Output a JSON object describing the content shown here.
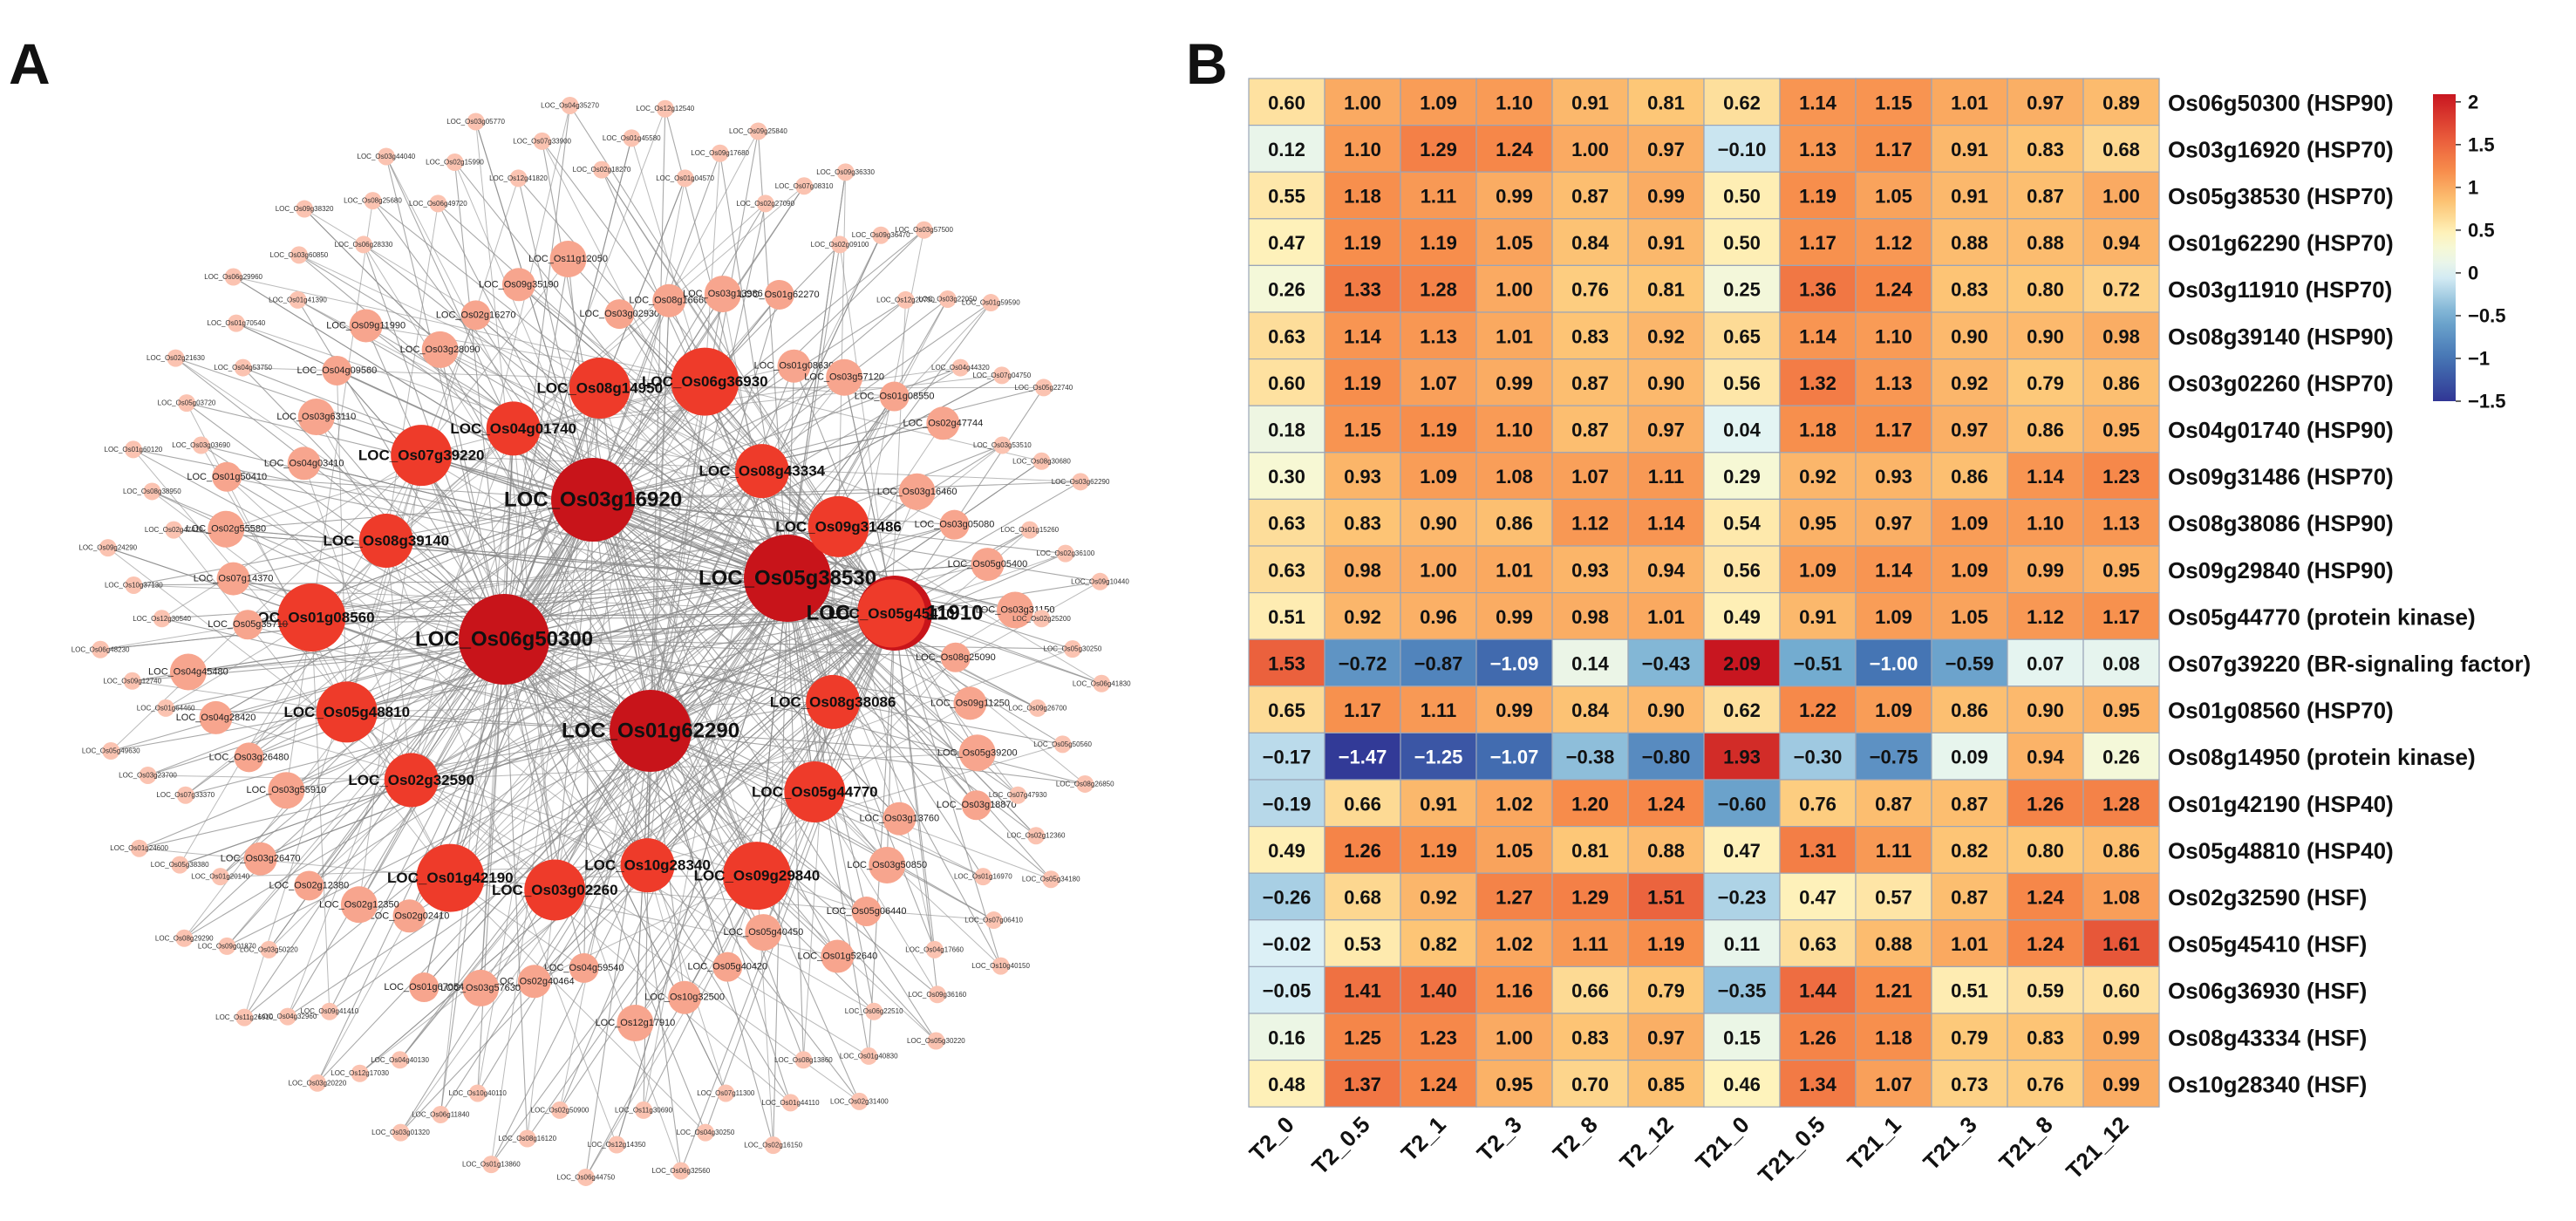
{
  "panels": {
    "a": "A",
    "b": "B"
  },
  "colors": {
    "edge": "#8c8c8c",
    "hub": "#c8141a",
    "major": "#ee3b2a",
    "minor": "#f7a58e",
    "tiny": "#fbc3b1",
    "grid": "#9aa5b8"
  },
  "network": {
    "hub_nodes": [
      "LOC_Os03g16920",
      "LOC_Os05g38530",
      "LOC_Os06g50300",
      "LOC_Os03g11910",
      "LOC_Os01g62290"
    ],
    "major_nodes": [
      "LOC_Os04g01740",
      "LOC_Os08g14950",
      "LOC_Os06g36930",
      "LOC_Os08g43334",
      "LOC_Os09g31486",
      "LOC_Os05g45410",
      "LOC_Os08g38086",
      "LOC_Os05g44770",
      "LOC_Os09g29840",
      "LOC_Os10g28340",
      "LOC_Os03g02260",
      "LOC_Os01g42190",
      "LOC_Os02g32590",
      "LOC_Os05g48810",
      "LOC_Os01g08560",
      "LOC_Os08g39140",
      "LOC_Os07g39220"
    ],
    "minor_nodes": [
      "LOC_Os03g02930",
      "LOC_Os08g16660",
      "LOC_Os03g13986",
      "LOC_Os01g62270",
      "LOC_Os01g08630",
      "LOC_Os03g57120",
      "LOC_Os01g08550",
      "LOC_Os02g47744",
      "LOC_Os03g16460",
      "LOC_Os03g05080",
      "LOC_Os05g05400",
      "LOC_Os03g31150",
      "LOC_Os08g25090",
      "LOC_Os09g11250",
      "LOC_Os05g39200",
      "LOC_Os03g18870",
      "LOC_Os03g13760",
      "LOC_Os03g50850",
      "LOC_Os05g06440",
      "LOC_Os01g52640",
      "LOC_Os05g40450",
      "LOC_Os05g40420",
      "LOC_Os10g32500",
      "LOC_Os12g17910",
      "LOC_Os04g59540",
      "LOC_Os02g40464",
      "LOC_Os03g57630",
      "LOC_Os01g67054",
      "LOC_Os02g02410",
      "LOC_Os02g12350",
      "LOC_Os02g12380",
      "LOC_Os03g26470",
      "LOC_Os03g55910",
      "LOC_Os03g26480",
      "LOC_Os04g28420",
      "LOC_Os04g45480",
      "LOC_Os05g35710",
      "LOC_Os07g14370",
      "LOC_Os02g55580",
      "LOC_Os01g50410",
      "LOC_Os04g03410",
      "LOC_Os03g63110",
      "LOC_Os04g09560",
      "LOC_Os09g11990",
      "LOC_Os03g28090",
      "LOC_Os02g16270",
      "LOC_Os09g35190",
      "LOC_Os11g12050"
    ],
    "tiny_nodes": [
      "LOC_Os02g18270",
      "LOC_Os01g45580",
      "LOC_Os12g12540",
      "LOC_Os01g04570",
      "LOC_Os09g17680",
      "LOC_Os09g25840",
      "LOC_Os02g27090",
      "LOC_Os07g08310",
      "LOC_Os09g36330",
      "LOC_Os02g09100",
      "LOC_Os09g36470",
      "LOC_Os03g57500",
      "LOC_Os12g20730",
      "LOC_Os03g22050",
      "LOC_Os01g59590",
      "LOC_Os04g44320",
      "LOC_Os07g04750",
      "LOC_Os05g22740",
      "LOC_Os03g53510",
      "LOC_Os08g30680",
      "LOC_Os03g62290",
      "LOC_Os01g15260",
      "LOC_Os02g36100",
      "LOC_Os09g10440",
      "LOC_Os02g25200",
      "LOC_Os05g30250",
      "LOC_Os06g41830",
      "LOC_Os09g26700",
      "LOC_Os05g50560",
      "LOC_Os08g26850",
      "LOC_Os07g47930",
      "LOC_Os02g12360",
      "LOC_Os05g34180",
      "LOC_Os01g16970",
      "LOC_Os07g06410",
      "LOC_Os10g40150",
      "LOC_Os04g17660",
      "LOC_Os09g36160",
      "LOC_Os05g30220",
      "LOC_Os06g22510",
      "LOC_Os01g40830",
      "LOC_Os02g31400",
      "LOC_Os08g13860",
      "LOC_Os01g44110",
      "LOC_Os02g16150",
      "LOC_Os07g11300",
      "LOC_Os04g30250",
      "LOC_Os06g32560",
      "LOC_Os11g30690",
      "LOC_Os12g14350",
      "LOC_Os06g44750",
      "LOC_Os02g50900",
      "LOC_Os08g16120",
      "LOC_Os01g13860",
      "LOC_Os10g40110",
      "LOC_Os06g11840",
      "LOC_Os03g01320",
      "LOC_Os04g40130",
      "LOC_Os12g17030",
      "LOC_Os03g20220",
      "LOC_Os09g41410",
      "LOC_Os04g32960",
      "LOC_Os11g26910",
      "LOC_Os03g50220",
      "LOC_Os09g01870",
      "LOC_Os08g29290",
      "LOC_Os01g20140",
      "LOC_Os05g38380",
      "LOC_Os01g24600",
      "LOC_Os07g33370",
      "LOC_Os03g23700",
      "LOC_Os05g49630",
      "LOC_Os01g64460",
      "LOC_Os09g12740",
      "LOC_Os06g48230",
      "LOC_Os12g30540",
      "LOC_Os10g37130",
      "LOC_Os09g24290",
      "LOC_Os02g47410",
      "LOC_Os08g38950",
      "LOC_Os01g60120",
      "LOC_Os03g03690",
      "LOC_Os05g03720",
      "LOC_Os02g21630",
      "LOC_Os04g53750",
      "LOC_Os01g70540",
      "LOC_Os06g29960",
      "LOC_Os01g41390",
      "LOC_Os03g60850",
      "LOC_Os09g38320",
      "LOC_Os06g28330",
      "LOC_Os08g25680",
      "LOC_Os03g44040",
      "LOC_Os06g49720",
      "LOC_Os02g15990",
      "LOC_Os03g05770",
      "LOC_Os12g41820",
      "LOC_Os07g33900",
      "LOC_Os04g35270"
    ]
  },
  "chart_data": {
    "type": "heatmap",
    "title": "",
    "columns": [
      "T2_0",
      "T2_0.5",
      "T2_1",
      "T2_3",
      "T2_8",
      "T2_12",
      "T21_0",
      "T21_0.5",
      "T21_1",
      "T21_3",
      "T21_8",
      "T21_12"
    ],
    "rows": [
      "Os06g50300 (HSP90)",
      "Os03g16920 (HSP70)",
      "Os05g38530 (HSP70)",
      "Os01g62290 (HSP70)",
      "Os03g11910 (HSP70)",
      "Os08g39140 (HSP90)",
      "Os03g02260 (HSP70)",
      "Os04g01740 (HSP90)",
      "Os09g31486 (HSP70)",
      "Os08g38086 (HSP90)",
      "Os09g29840 (HSP90)",
      "Os05g44770 (protein kinase)",
      "Os07g39220 (BR-signaling factor)",
      "Os01g08560 (HSP70)",
      "Os08g14950 (protein kinase)",
      "Os01g42190 (HSP40)",
      "Os05g48810 (HSP40)",
      "Os02g32590 (HSF)",
      "Os05g45410 (HSF)",
      "Os06g36930 (HSF)",
      "Os08g43334 (HSF)",
      "Os10g28340 (HSF)"
    ],
    "values": [
      [
        0.6,
        1.0,
        1.09,
        1.1,
        0.91,
        0.81,
        0.62,
        1.14,
        1.15,
        1.01,
        0.97,
        0.89
      ],
      [
        0.12,
        1.1,
        1.29,
        1.24,
        1.0,
        0.97,
        -0.1,
        1.13,
        1.17,
        0.91,
        0.83,
        0.68
      ],
      [
        0.55,
        1.18,
        1.11,
        0.99,
        0.87,
        0.99,
        0.5,
        1.19,
        1.05,
        0.91,
        0.87,
        1.0
      ],
      [
        0.47,
        1.19,
        1.19,
        1.05,
        0.84,
        0.91,
        0.5,
        1.17,
        1.12,
        0.88,
        0.88,
        0.94
      ],
      [
        0.26,
        1.33,
        1.28,
        1.0,
        0.76,
        0.81,
        0.25,
        1.36,
        1.24,
        0.83,
        0.8,
        0.72
      ],
      [
        0.63,
        1.14,
        1.13,
        1.01,
        0.83,
        0.92,
        0.65,
        1.14,
        1.1,
        0.9,
        0.9,
        0.98
      ],
      [
        0.6,
        1.19,
        1.07,
        0.99,
        0.87,
        0.9,
        0.56,
        1.32,
        1.13,
        0.92,
        0.79,
        0.86
      ],
      [
        0.18,
        1.15,
        1.19,
        1.1,
        0.87,
        0.97,
        0.04,
        1.18,
        1.17,
        0.97,
        0.86,
        0.95
      ],
      [
        0.3,
        0.93,
        1.09,
        1.08,
        1.07,
        1.11,
        0.29,
        0.92,
        0.93,
        0.86,
        1.14,
        1.23
      ],
      [
        0.63,
        0.83,
        0.9,
        0.86,
        1.12,
        1.14,
        0.54,
        0.95,
        0.97,
        1.09,
        1.1,
        1.13
      ],
      [
        0.63,
        0.98,
        1.0,
        1.01,
        0.93,
        0.94,
        0.56,
        1.09,
        1.14,
        1.09,
        0.99,
        0.95
      ],
      [
        0.51,
        0.92,
        0.96,
        0.99,
        0.98,
        1.01,
        0.49,
        0.91,
        1.09,
        1.05,
        1.12,
        1.17
      ],
      [
        1.53,
        -0.72,
        -0.87,
        -1.09,
        0.14,
        -0.43,
        2.09,
        -0.51,
        -1.0,
        -0.59,
        0.07,
        0.08
      ],
      [
        0.65,
        1.17,
        1.11,
        0.99,
        0.84,
        0.9,
        0.62,
        1.22,
        1.09,
        0.86,
        0.9,
        0.95
      ],
      [
        -0.17,
        -1.47,
        -1.25,
        -1.07,
        -0.38,
        -0.8,
        1.93,
        -0.3,
        -0.75,
        0.09,
        0.94,
        0.26
      ],
      [
        -0.19,
        0.66,
        0.91,
        1.02,
        1.2,
        1.24,
        -0.6,
        0.76,
        0.87,
        0.87,
        1.26,
        1.28
      ],
      [
        0.49,
        1.26,
        1.19,
        1.05,
        0.81,
        0.88,
        0.47,
        1.31,
        1.11,
        0.82,
        0.8,
        0.86
      ],
      [
        -0.26,
        0.68,
        0.92,
        1.27,
        1.29,
        1.51,
        -0.23,
        0.47,
        0.57,
        0.87,
        1.24,
        1.08
      ],
      [
        -0.02,
        0.53,
        0.82,
        1.02,
        1.11,
        1.19,
        0.11,
        0.63,
        0.88,
        1.01,
        1.24,
        1.61
      ],
      [
        -0.05,
        1.41,
        1.4,
        1.16,
        0.66,
        0.79,
        -0.35,
        1.44,
        1.21,
        0.51,
        0.59,
        0.6
      ],
      [
        0.16,
        1.25,
        1.23,
        1.0,
        0.83,
        0.97,
        0.15,
        1.26,
        1.18,
        0.79,
        0.83,
        0.99
      ],
      [
        0.48,
        1.37,
        1.24,
        0.95,
        0.7,
        0.85,
        0.46,
        1.34,
        1.07,
        0.73,
        0.76,
        0.99
      ]
    ],
    "legend": {
      "min": -1.5,
      "max": 2.09,
      "ticks": [
        2,
        1.5,
        1,
        0.5,
        0,
        -0.5,
        -1,
        -1.5
      ],
      "tick_labels": [
        "2",
        "1.5",
        "1",
        "0.5",
        "0",
        "−0.5",
        "−1",
        "−1.5"
      ]
    }
  }
}
